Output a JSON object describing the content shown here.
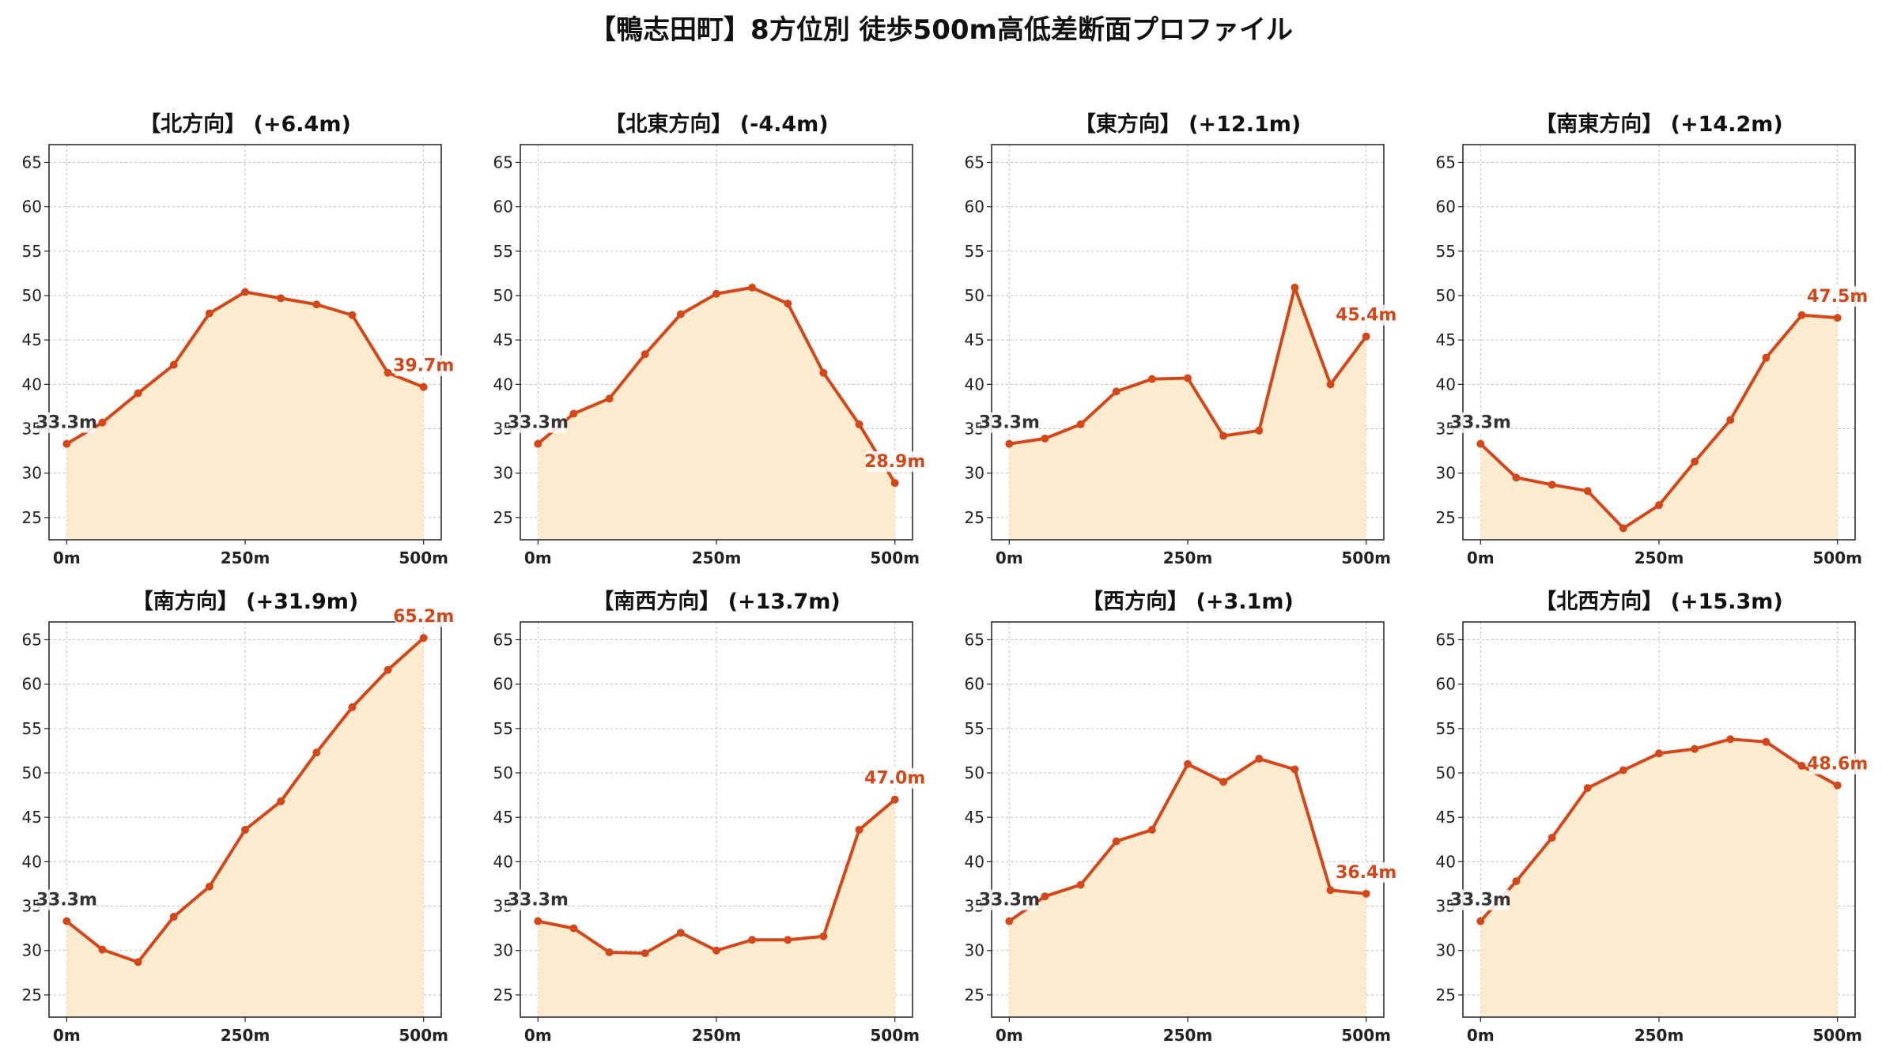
{
  "title": "【鴨志田町】8方位別 徒歩500m高低差断面プロファイル",
  "colors": {
    "line": "#d3481a",
    "fill": "#fdebd0",
    "grid": "#bdbdbd",
    "start_label": "#333333",
    "end_label": "#d3481a"
  },
  "chart_data": [
    {
      "type": "area",
      "title": "【北方向】 (+6.4m)",
      "x": [
        0,
        50,
        100,
        150,
        200,
        250,
        300,
        350,
        400,
        450,
        500
      ],
      "y": [
        33.3,
        35.7,
        39.0,
        42.2,
        48.0,
        50.4,
        49.7,
        49.0,
        47.8,
        41.3,
        39.7
      ],
      "ylim": [
        22.5,
        67
      ],
      "yticks": [
        25,
        30,
        35,
        40,
        45,
        50,
        55,
        60,
        65
      ],
      "xticks": [
        "0m",
        "250m",
        "500m"
      ],
      "start_label": "33.3m",
      "end_label": "39.7m",
      "grid": true
    },
    {
      "type": "area",
      "title": "【北東方向】 (-4.4m)",
      "x": [
        0,
        50,
        100,
        150,
        200,
        250,
        300,
        350,
        400,
        450,
        500
      ],
      "y": [
        33.3,
        36.7,
        38.4,
        43.4,
        47.9,
        50.2,
        50.9,
        49.1,
        41.3,
        35.5,
        28.9
      ],
      "ylim": [
        22.5,
        67
      ],
      "yticks": [
        25,
        30,
        35,
        40,
        45,
        50,
        55,
        60,
        65
      ],
      "xticks": [
        "0m",
        "250m",
        "500m"
      ],
      "start_label": "33.3m",
      "end_label": "28.9m",
      "grid": true
    },
    {
      "type": "area",
      "title": "【東方向】 (+12.1m)",
      "x": [
        0,
        50,
        100,
        150,
        200,
        250,
        300,
        350,
        400,
        450,
        500
      ],
      "y": [
        33.3,
        33.9,
        35.5,
        39.2,
        40.6,
        40.7,
        34.2,
        34.8,
        50.9,
        40.0,
        45.4
      ],
      "ylim": [
        22.5,
        67
      ],
      "yticks": [
        25,
        30,
        35,
        40,
        45,
        50,
        55,
        60,
        65
      ],
      "xticks": [
        "0m",
        "250m",
        "500m"
      ],
      "start_label": "33.3m",
      "end_label": "45.4m",
      "grid": true
    },
    {
      "type": "area",
      "title": "【南東方向】 (+14.2m)",
      "x": [
        0,
        50,
        100,
        150,
        200,
        250,
        300,
        350,
        400,
        450,
        500
      ],
      "y": [
        33.3,
        29.5,
        28.7,
        28.0,
        23.8,
        26.4,
        31.3,
        36.0,
        43.0,
        47.8,
        47.5
      ],
      "ylim": [
        22.5,
        67
      ],
      "yticks": [
        25,
        30,
        35,
        40,
        45,
        50,
        55,
        60,
        65
      ],
      "xticks": [
        "0m",
        "250m",
        "500m"
      ],
      "start_label": "33.3m",
      "end_label": "47.5m",
      "grid": true
    },
    {
      "type": "area",
      "title": "【南方向】 (+31.9m)",
      "x": [
        0,
        50,
        100,
        150,
        200,
        250,
        300,
        350,
        400,
        450,
        500
      ],
      "y": [
        33.3,
        30.1,
        28.7,
        33.8,
        37.2,
        43.6,
        46.8,
        52.3,
        57.4,
        61.6,
        65.2
      ],
      "ylim": [
        22.5,
        67
      ],
      "yticks": [
        25,
        30,
        35,
        40,
        45,
        50,
        55,
        60,
        65
      ],
      "xticks": [
        "0m",
        "250m",
        "500m"
      ],
      "start_label": "33.3m",
      "end_label": "65.2m",
      "grid": true
    },
    {
      "type": "area",
      "title": "【南西方向】 (+13.7m)",
      "x": [
        0,
        50,
        100,
        150,
        200,
        250,
        300,
        350,
        400,
        450,
        500
      ],
      "y": [
        33.3,
        32.5,
        29.8,
        29.7,
        32.0,
        30.0,
        31.2,
        31.2,
        31.6,
        43.6,
        47.0
      ],
      "ylim": [
        22.5,
        67
      ],
      "yticks": [
        25,
        30,
        35,
        40,
        45,
        50,
        55,
        60,
        65
      ],
      "xticks": [
        "0m",
        "250m",
        "500m"
      ],
      "start_label": "33.3m",
      "end_label": "47.0m",
      "grid": true
    },
    {
      "type": "area",
      "title": "【西方向】 (+3.1m)",
      "x": [
        0,
        50,
        100,
        150,
        200,
        250,
        300,
        350,
        400,
        450,
        500
      ],
      "y": [
        33.3,
        36.1,
        37.4,
        42.3,
        43.6,
        51.0,
        49.0,
        51.6,
        50.4,
        36.8,
        36.4
      ],
      "ylim": [
        22.5,
        67
      ],
      "yticks": [
        25,
        30,
        35,
        40,
        45,
        50,
        55,
        60,
        65
      ],
      "xticks": [
        "0m",
        "250m",
        "500m"
      ],
      "start_label": "33.3m",
      "end_label": "36.4m",
      "grid": true
    },
    {
      "type": "area",
      "title": "【北西方向】 (+15.3m)",
      "x": [
        0,
        50,
        100,
        150,
        200,
        250,
        300,
        350,
        400,
        450,
        500
      ],
      "y": [
        33.3,
        37.8,
        42.7,
        48.3,
        50.3,
        52.2,
        52.7,
        53.8,
        53.5,
        50.8,
        48.6
      ],
      "ylim": [
        22.5,
        67
      ],
      "yticks": [
        25,
        30,
        35,
        40,
        45,
        50,
        55,
        60,
        65
      ],
      "xticks": [
        "0m",
        "250m",
        "500m"
      ],
      "start_label": "33.3m",
      "end_label": "48.6m",
      "grid": true
    }
  ]
}
